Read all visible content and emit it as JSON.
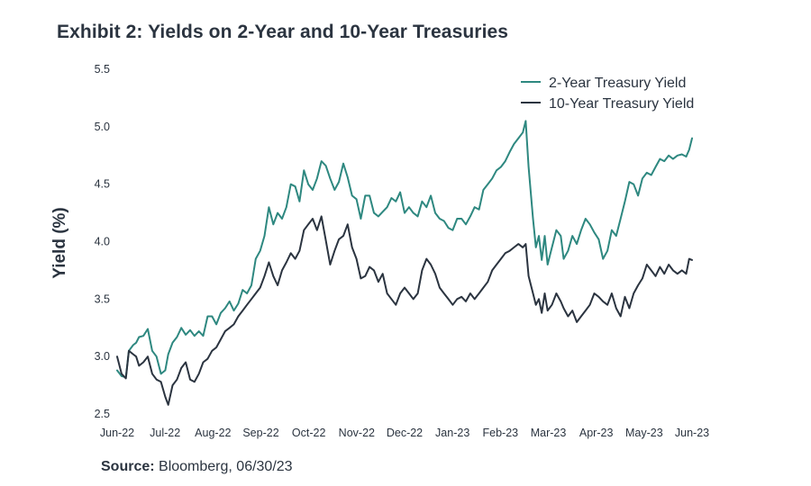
{
  "header": {
    "title": "Exhibit 2: Yields on 2-Year and 10-Year Treasuries"
  },
  "footer": {
    "source_label": "Source:",
    "source_text": " Bloomberg, 06/30/23"
  },
  "colors": {
    "two_year": "#2e8880",
    "ten_year": "#2b3440",
    "text": "#2b3440"
  },
  "chart_data": {
    "type": "line",
    "title": "Exhibit 2: Yields on 2-Year and 10-Year Treasuries",
    "xlabel": "",
    "ylabel": "Yield (%)",
    "ylim": [
      2.5,
      5.5
    ],
    "yticks": [
      "2.5",
      "3.0",
      "3.5",
      "4.0",
      "4.5",
      "5.0",
      "5.5"
    ],
    "xlim": [
      "2022-06-01",
      "2023-06-30"
    ],
    "xticks": [
      "Jun-22",
      "Jul-22",
      "Aug-22",
      "Sep-22",
      "Oct-22",
      "Nov-22",
      "Dec-22",
      "Jan-23",
      "Feb-23",
      "Mar-23",
      "Apr-23",
      "May-23",
      "Jun-23"
    ],
    "legend_position": "top-right",
    "grid": false,
    "series": [
      {
        "name": "2-Year Treasury Yield",
        "color": "#2e8880",
        "points": [
          [
            "2022-06-01",
            2.88
          ],
          [
            "2022-06-04",
            2.83
          ],
          [
            "2022-06-07",
            2.82
          ],
          [
            "2022-06-09",
            3.05
          ],
          [
            "2022-06-12",
            3.1
          ],
          [
            "2022-06-14",
            3.12
          ],
          [
            "2022-06-16",
            3.17
          ],
          [
            "2022-06-19",
            3.18
          ],
          [
            "2022-06-22",
            3.24
          ],
          [
            "2022-06-25",
            3.05
          ],
          [
            "2022-06-28",
            3.0
          ],
          [
            "2022-07-01",
            2.85
          ],
          [
            "2022-07-04",
            2.88
          ],
          [
            "2022-07-06",
            3.02
          ],
          [
            "2022-07-09",
            3.12
          ],
          [
            "2022-07-12",
            3.17
          ],
          [
            "2022-07-15",
            3.25
          ],
          [
            "2022-07-18",
            3.19
          ],
          [
            "2022-07-21",
            3.23
          ],
          [
            "2022-07-24",
            3.18
          ],
          [
            "2022-07-27",
            3.22
          ],
          [
            "2022-07-30",
            3.18
          ],
          [
            "2022-08-02",
            3.35
          ],
          [
            "2022-08-05",
            3.35
          ],
          [
            "2022-08-08",
            3.28
          ],
          [
            "2022-08-11",
            3.38
          ],
          [
            "2022-08-14",
            3.42
          ],
          [
            "2022-08-17",
            3.48
          ],
          [
            "2022-08-20",
            3.4
          ],
          [
            "2022-08-23",
            3.46
          ],
          [
            "2022-08-26",
            3.58
          ],
          [
            "2022-08-29",
            3.55
          ],
          [
            "2022-09-01",
            3.62
          ],
          [
            "2022-09-04",
            3.85
          ],
          [
            "2022-09-07",
            3.92
          ],
          [
            "2022-09-10",
            4.05
          ],
          [
            "2022-09-13",
            4.3
          ],
          [
            "2022-09-16",
            4.15
          ],
          [
            "2022-09-19",
            4.25
          ],
          [
            "2022-09-22",
            4.2
          ],
          [
            "2022-09-25",
            4.3
          ],
          [
            "2022-09-28",
            4.5
          ],
          [
            "2022-10-01",
            4.48
          ],
          [
            "2022-10-04",
            4.35
          ],
          [
            "2022-10-07",
            4.62
          ],
          [
            "2022-10-10",
            4.5
          ],
          [
            "2022-10-13",
            4.45
          ],
          [
            "2022-10-16",
            4.55
          ],
          [
            "2022-10-19",
            4.7
          ],
          [
            "2022-10-22",
            4.66
          ],
          [
            "2022-10-25",
            4.55
          ],
          [
            "2022-10-28",
            4.45
          ],
          [
            "2022-10-31",
            4.52
          ],
          [
            "2022-11-03",
            4.68
          ],
          [
            "2022-11-06",
            4.56
          ],
          [
            "2022-11-09",
            4.4
          ],
          [
            "2022-11-12",
            4.37
          ],
          [
            "2022-11-15",
            4.2
          ],
          [
            "2022-11-18",
            4.4
          ],
          [
            "2022-11-21",
            4.4
          ],
          [
            "2022-11-24",
            4.25
          ],
          [
            "2022-11-27",
            4.22
          ],
          [
            "2022-11-30",
            4.26
          ],
          [
            "2022-12-03",
            4.3
          ],
          [
            "2022-12-06",
            4.38
          ],
          [
            "2022-12-09",
            4.35
          ],
          [
            "2022-12-12",
            4.43
          ],
          [
            "2022-12-15",
            4.25
          ],
          [
            "2022-12-18",
            4.3
          ],
          [
            "2022-12-21",
            4.25
          ],
          [
            "2022-12-24",
            4.22
          ],
          [
            "2022-12-27",
            4.35
          ],
          [
            "2022-12-30",
            4.3
          ],
          [
            "2023-01-02",
            4.4
          ],
          [
            "2023-01-05",
            4.25
          ],
          [
            "2023-01-08",
            4.2
          ],
          [
            "2023-01-11",
            4.18
          ],
          [
            "2023-01-14",
            4.12
          ],
          [
            "2023-01-17",
            4.1
          ],
          [
            "2023-01-20",
            4.2
          ],
          [
            "2023-01-23",
            4.2
          ],
          [
            "2023-01-26",
            4.15
          ],
          [
            "2023-01-29",
            4.22
          ],
          [
            "2023-02-01",
            4.3
          ],
          [
            "2023-02-04",
            4.28
          ],
          [
            "2023-02-07",
            4.45
          ],
          [
            "2023-02-10",
            4.5
          ],
          [
            "2023-02-13",
            4.55
          ],
          [
            "2023-02-16",
            4.62
          ],
          [
            "2023-02-19",
            4.65
          ],
          [
            "2023-02-22",
            4.7
          ],
          [
            "2023-02-25",
            4.78
          ],
          [
            "2023-02-28",
            4.85
          ],
          [
            "2023-03-03",
            4.9
          ],
          [
            "2023-03-06",
            4.95
          ],
          [
            "2023-03-08",
            5.05
          ],
          [
            "2023-03-10",
            4.65
          ],
          [
            "2023-03-13",
            4.2
          ],
          [
            "2023-03-15",
            3.95
          ],
          [
            "2023-03-17",
            4.05
          ],
          [
            "2023-03-19",
            3.84
          ],
          [
            "2023-03-21",
            4.05
          ],
          [
            "2023-03-23",
            3.8
          ],
          [
            "2023-03-26",
            3.95
          ],
          [
            "2023-03-29",
            4.1
          ],
          [
            "2023-04-01",
            4.05
          ],
          [
            "2023-04-03",
            3.85
          ],
          [
            "2023-04-06",
            3.92
          ],
          [
            "2023-04-09",
            4.05
          ],
          [
            "2023-04-12",
            3.98
          ],
          [
            "2023-04-15",
            4.1
          ],
          [
            "2023-04-18",
            4.2
          ],
          [
            "2023-04-21",
            4.15
          ],
          [
            "2023-04-24",
            4.08
          ],
          [
            "2023-04-27",
            4.02
          ],
          [
            "2023-04-30",
            3.85
          ],
          [
            "2023-05-03",
            3.92
          ],
          [
            "2023-05-06",
            4.1
          ],
          [
            "2023-05-09",
            4.05
          ],
          [
            "2023-05-12",
            4.2
          ],
          [
            "2023-05-15",
            4.35
          ],
          [
            "2023-05-18",
            4.52
          ],
          [
            "2023-05-21",
            4.5
          ],
          [
            "2023-05-24",
            4.4
          ],
          [
            "2023-05-27",
            4.55
          ],
          [
            "2023-05-30",
            4.6
          ],
          [
            "2023-06-02",
            4.58
          ],
          [
            "2023-06-05",
            4.65
          ],
          [
            "2023-06-08",
            4.72
          ],
          [
            "2023-06-11",
            4.7
          ],
          [
            "2023-06-14",
            4.75
          ],
          [
            "2023-06-17",
            4.72
          ],
          [
            "2023-06-20",
            4.75
          ],
          [
            "2023-06-23",
            4.76
          ],
          [
            "2023-06-26",
            4.74
          ],
          [
            "2023-06-28",
            4.8
          ],
          [
            "2023-06-30",
            4.9
          ]
        ]
      },
      {
        "name": "10-Year Treasury Yield",
        "color": "#2b3440",
        "points": [
          [
            "2022-06-01",
            3.0
          ],
          [
            "2022-06-04",
            2.85
          ],
          [
            "2022-06-07",
            2.81
          ],
          [
            "2022-06-09",
            3.05
          ],
          [
            "2022-06-12",
            3.02
          ],
          [
            "2022-06-14",
            3.0
          ],
          [
            "2022-06-16",
            2.92
          ],
          [
            "2022-06-19",
            2.95
          ],
          [
            "2022-06-22",
            3.0
          ],
          [
            "2022-06-25",
            2.85
          ],
          [
            "2022-06-28",
            2.8
          ],
          [
            "2022-07-01",
            2.78
          ],
          [
            "2022-07-04",
            2.65
          ],
          [
            "2022-07-06",
            2.58
          ],
          [
            "2022-07-09",
            2.75
          ],
          [
            "2022-07-12",
            2.8
          ],
          [
            "2022-07-15",
            2.9
          ],
          [
            "2022-07-18",
            2.95
          ],
          [
            "2022-07-21",
            2.8
          ],
          [
            "2022-07-24",
            2.78
          ],
          [
            "2022-07-27",
            2.85
          ],
          [
            "2022-07-30",
            2.95
          ],
          [
            "2022-08-02",
            2.98
          ],
          [
            "2022-08-05",
            3.05
          ],
          [
            "2022-08-08",
            3.08
          ],
          [
            "2022-08-11",
            3.15
          ],
          [
            "2022-08-14",
            3.22
          ],
          [
            "2022-08-17",
            3.25
          ],
          [
            "2022-08-20",
            3.28
          ],
          [
            "2022-08-23",
            3.35
          ],
          [
            "2022-08-26",
            3.4
          ],
          [
            "2022-08-29",
            3.45
          ],
          [
            "2022-09-01",
            3.5
          ],
          [
            "2022-09-04",
            3.55
          ],
          [
            "2022-09-07",
            3.6
          ],
          [
            "2022-09-10",
            3.7
          ],
          [
            "2022-09-13",
            3.82
          ],
          [
            "2022-09-16",
            3.7
          ],
          [
            "2022-09-19",
            3.62
          ],
          [
            "2022-09-22",
            3.75
          ],
          [
            "2022-09-25",
            3.82
          ],
          [
            "2022-09-28",
            3.9
          ],
          [
            "2022-10-01",
            3.85
          ],
          [
            "2022-10-04",
            3.92
          ],
          [
            "2022-10-07",
            4.1
          ],
          [
            "2022-10-10",
            4.15
          ],
          [
            "2022-10-13",
            4.2
          ],
          [
            "2022-10-16",
            4.1
          ],
          [
            "2022-10-19",
            4.22
          ],
          [
            "2022-10-22",
            4.01
          ],
          [
            "2022-10-25",
            3.8
          ],
          [
            "2022-10-28",
            3.92
          ],
          [
            "2022-10-31",
            4.02
          ],
          [
            "2022-11-03",
            4.05
          ],
          [
            "2022-11-06",
            4.15
          ],
          [
            "2022-11-09",
            3.95
          ],
          [
            "2022-11-12",
            3.85
          ],
          [
            "2022-11-15",
            3.68
          ],
          [
            "2022-11-18",
            3.7
          ],
          [
            "2022-11-21",
            3.78
          ],
          [
            "2022-11-24",
            3.75
          ],
          [
            "2022-11-27",
            3.65
          ],
          [
            "2022-11-30",
            3.72
          ],
          [
            "2022-12-03",
            3.55
          ],
          [
            "2022-12-06",
            3.5
          ],
          [
            "2022-12-09",
            3.45
          ],
          [
            "2022-12-12",
            3.55
          ],
          [
            "2022-12-15",
            3.6
          ],
          [
            "2022-12-18",
            3.55
          ],
          [
            "2022-12-21",
            3.5
          ],
          [
            "2022-12-24",
            3.55
          ],
          [
            "2022-12-27",
            3.75
          ],
          [
            "2022-12-30",
            3.85
          ],
          [
            "2023-01-02",
            3.8
          ],
          [
            "2023-01-05",
            3.72
          ],
          [
            "2023-01-08",
            3.6
          ],
          [
            "2023-01-11",
            3.55
          ],
          [
            "2023-01-14",
            3.5
          ],
          [
            "2023-01-17",
            3.45
          ],
          [
            "2023-01-20",
            3.5
          ],
          [
            "2023-01-23",
            3.52
          ],
          [
            "2023-01-26",
            3.48
          ],
          [
            "2023-01-29",
            3.55
          ],
          [
            "2023-02-01",
            3.5
          ],
          [
            "2023-02-04",
            3.55
          ],
          [
            "2023-02-07",
            3.6
          ],
          [
            "2023-02-10",
            3.65
          ],
          [
            "2023-02-13",
            3.75
          ],
          [
            "2023-02-16",
            3.8
          ],
          [
            "2023-02-19",
            3.85
          ],
          [
            "2023-02-22",
            3.9
          ],
          [
            "2023-02-25",
            3.92
          ],
          [
            "2023-02-28",
            3.95
          ],
          [
            "2023-03-03",
            3.98
          ],
          [
            "2023-03-06",
            3.95
          ],
          [
            "2023-03-08",
            3.98
          ],
          [
            "2023-03-10",
            3.7
          ],
          [
            "2023-03-13",
            3.55
          ],
          [
            "2023-03-15",
            3.45
          ],
          [
            "2023-03-17",
            3.5
          ],
          [
            "2023-03-19",
            3.38
          ],
          [
            "2023-03-21",
            3.55
          ],
          [
            "2023-03-23",
            3.4
          ],
          [
            "2023-03-26",
            3.45
          ],
          [
            "2023-03-29",
            3.55
          ],
          [
            "2023-04-01",
            3.48
          ],
          [
            "2023-04-03",
            3.42
          ],
          [
            "2023-04-06",
            3.35
          ],
          [
            "2023-04-09",
            3.4
          ],
          [
            "2023-04-12",
            3.3
          ],
          [
            "2023-04-15",
            3.35
          ],
          [
            "2023-04-18",
            3.4
          ],
          [
            "2023-04-21",
            3.45
          ],
          [
            "2023-04-24",
            3.55
          ],
          [
            "2023-04-27",
            3.52
          ],
          [
            "2023-04-30",
            3.48
          ],
          [
            "2023-05-03",
            3.45
          ],
          [
            "2023-05-06",
            3.55
          ],
          [
            "2023-05-09",
            3.42
          ],
          [
            "2023-05-12",
            3.35
          ],
          [
            "2023-05-15",
            3.52
          ],
          [
            "2023-05-18",
            3.42
          ],
          [
            "2023-05-21",
            3.55
          ],
          [
            "2023-05-24",
            3.62
          ],
          [
            "2023-05-27",
            3.68
          ],
          [
            "2023-05-30",
            3.8
          ],
          [
            "2023-06-02",
            3.75
          ],
          [
            "2023-06-05",
            3.7
          ],
          [
            "2023-06-08",
            3.78
          ],
          [
            "2023-06-11",
            3.72
          ],
          [
            "2023-06-14",
            3.8
          ],
          [
            "2023-06-17",
            3.75
          ],
          [
            "2023-06-20",
            3.72
          ],
          [
            "2023-06-23",
            3.75
          ],
          [
            "2023-06-26",
            3.72
          ],
          [
            "2023-06-28",
            3.85
          ],
          [
            "2023-06-30",
            3.84
          ]
        ]
      }
    ]
  }
}
